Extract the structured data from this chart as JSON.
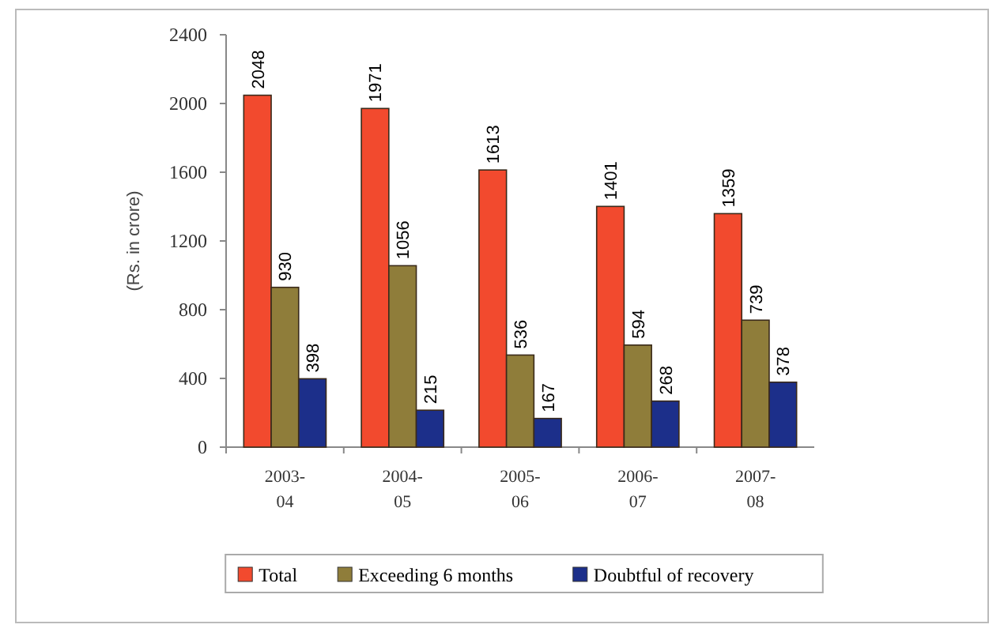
{
  "chart_data": {
    "type": "bar",
    "ylabel": "(Rs. in crore)",
    "categories": [
      "2003-04",
      "2004-05",
      "2005-06",
      "2006-07",
      "2007-08"
    ],
    "series": [
      {
        "name": "Total",
        "color": "#f24a2e",
        "values": [
          2048,
          1971,
          1613,
          1401,
          1359
        ]
      },
      {
        "name": "Exceeding 6 months",
        "color": "#8f7d3a",
        "values": [
          930,
          1056,
          536,
          594,
          739
        ]
      },
      {
        "name": "Doubtful of recovery",
        "color": "#1c2f8a",
        "values": [
          398,
          215,
          167,
          268,
          378
        ]
      }
    ],
    "ylim": [
      0,
      2400
    ],
    "yticks": [
      0,
      400,
      800,
      1200,
      1600,
      2000,
      2400
    ],
    "data_labels": true,
    "legend": "bottom",
    "grid": false
  }
}
